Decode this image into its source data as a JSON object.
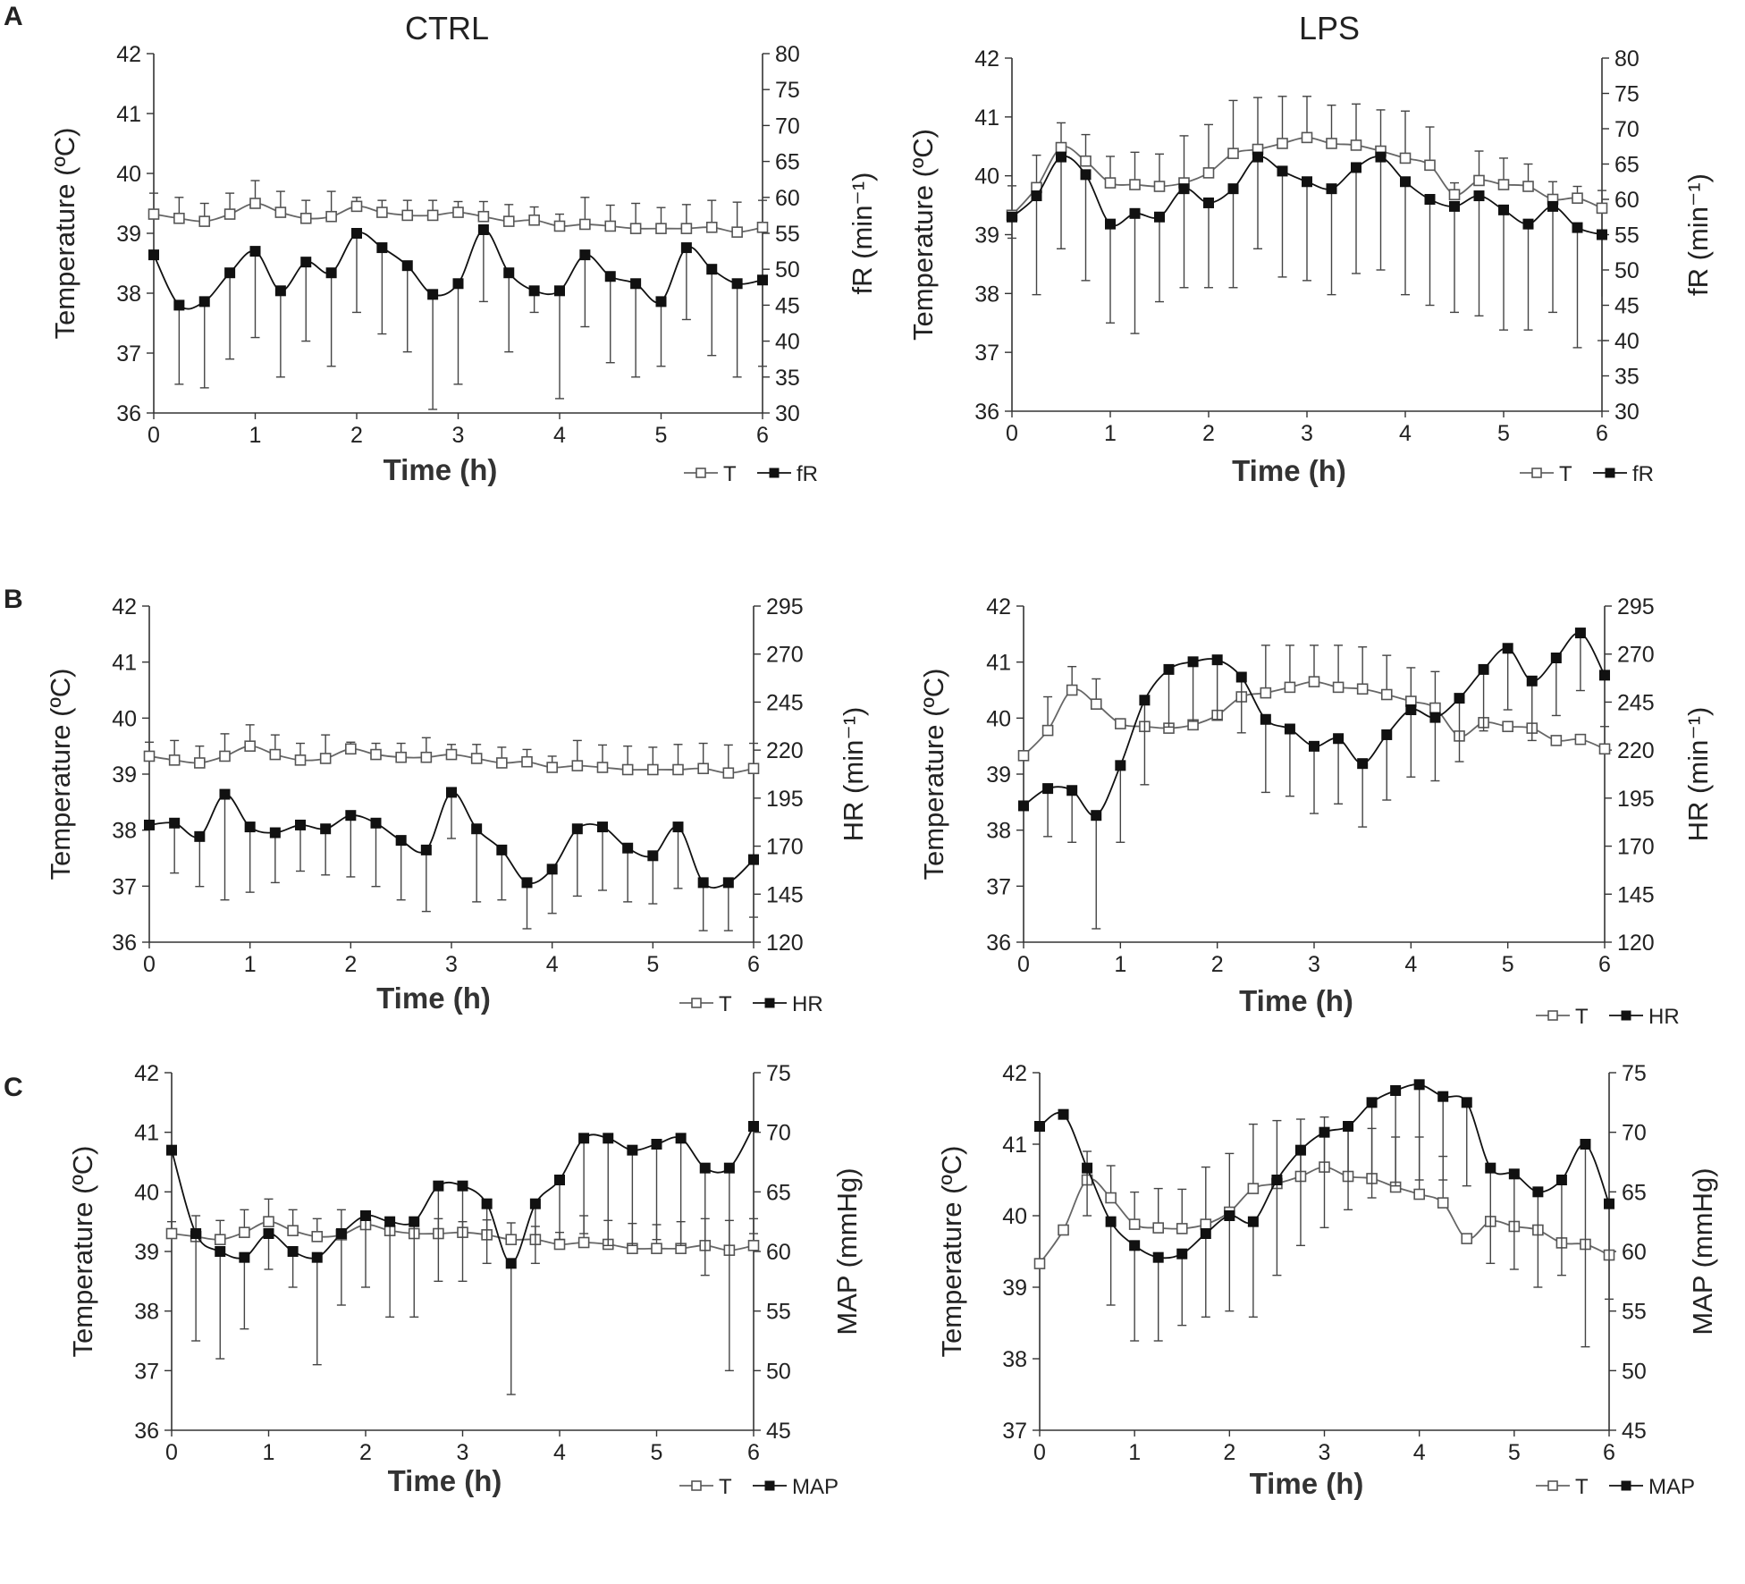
{
  "column_titles": [
    "CTRL",
    "LPS"
  ],
  "panel_letters": [
    "A",
    "B",
    "C"
  ],
  "chart_data": [
    {
      "id": "A-CTRL",
      "type": "line",
      "panel": "A",
      "group": "CTRL",
      "title": "CTRL",
      "xlabel": "Time (h)",
      "ylabel_left": "Temperature (ºC)",
      "ylabel_right": "fR (min⁻¹)",
      "xlim": [
        0,
        6
      ],
      "ylim_left": [
        36,
        42
      ],
      "ylim_right": [
        30,
        80
      ],
      "xticks": [
        0,
        1,
        2,
        3,
        4,
        5,
        6
      ],
      "yticks_left": [
        36,
        37,
        38,
        39,
        40,
        41,
        42
      ],
      "yticks_right": [
        30,
        35,
        40,
        45,
        50,
        55,
        60,
        65,
        70,
        75,
        80
      ],
      "legend": [
        "T",
        "fR"
      ],
      "x": [
        0,
        0.25,
        0.5,
        0.75,
        1,
        1.25,
        1.5,
        1.75,
        2,
        2.25,
        2.5,
        2.75,
        3,
        3.25,
        3.5,
        3.75,
        4,
        4.25,
        4.5,
        4.75,
        5,
        5.25,
        5.5,
        5.75,
        6
      ],
      "series": [
        {
          "name": "T",
          "axis": "left",
          "values": [
            39.32,
            39.25,
            39.2,
            39.32,
            39.5,
            39.35,
            39.25,
            39.28,
            39.45,
            39.35,
            39.3,
            39.3,
            39.35,
            39.28,
            39.2,
            39.22,
            39.12,
            39.15,
            39.12,
            39.08,
            39.08,
            39.08,
            39.1,
            39.02,
            39.1
          ],
          "err": [
            0.35,
            0.35,
            0.3,
            0.35,
            0.38,
            0.35,
            0.3,
            0.42,
            0.15,
            0.2,
            0.25,
            0.25,
            0.18,
            0.25,
            0.28,
            0.22,
            0.2,
            0.45,
            0.35,
            0.42,
            0.35,
            0.4,
            0.45,
            0.5,
            0.45
          ]
        },
        {
          "name": "fR",
          "axis": "right",
          "values": [
            52,
            45,
            45.5,
            49.5,
            52.5,
            47,
            51,
            49.5,
            55,
            53,
            50.5,
            46.5,
            48,
            55.5,
            49.5,
            47,
            47,
            52,
            49,
            48,
            45.5,
            53,
            50,
            48,
            48.5
          ],
          "err": [
            0,
            11,
            12,
            12,
            12,
            12,
            11,
            13,
            11,
            12,
            12,
            16,
            14,
            10,
            11,
            3,
            15,
            10,
            12,
            13,
            9,
            10,
            12,
            13,
            12
          ]
        }
      ]
    },
    {
      "id": "A-LPS",
      "type": "line",
      "panel": "A",
      "group": "LPS",
      "title": "LPS",
      "xlabel": "Time (h)",
      "ylabel_left": "Temperature (ºC)",
      "ylabel_right": "fR (min⁻¹)",
      "xlim": [
        0,
        6
      ],
      "ylim_left": [
        36,
        42
      ],
      "ylim_right": [
        30,
        80
      ],
      "xticks": [
        0,
        1,
        2,
        3,
        4,
        5,
        6
      ],
      "yticks_left": [
        36,
        37,
        38,
        39,
        40,
        41,
        42
      ],
      "yticks_right": [
        30,
        35,
        40,
        45,
        50,
        55,
        60,
        65,
        70,
        75,
        80
      ],
      "legend": [
        "T",
        "fR"
      ],
      "x": [
        0,
        0.25,
        0.5,
        0.75,
        1,
        1.25,
        1.5,
        1.75,
        2,
        2.25,
        2.5,
        2.75,
        3,
        3.25,
        3.5,
        3.75,
        4,
        4.25,
        4.5,
        4.75,
        5,
        5.25,
        5.5,
        5.75,
        6
      ],
      "series": [
        {
          "name": "T",
          "axis": "left",
          "values": [
            39.33,
            39.8,
            40.48,
            40.25,
            39.88,
            39.85,
            39.82,
            39.88,
            40.05,
            40.38,
            40.45,
            40.55,
            40.65,
            40.55,
            40.52,
            40.42,
            40.3,
            40.18,
            39.68,
            39.92,
            39.85,
            39.82,
            39.6,
            39.62,
            39.45
          ],
          "err": [
            0.5,
            0.55,
            0.42,
            0.45,
            0.45,
            0.55,
            0.55,
            0.8,
            0.82,
            0.9,
            0.88,
            0.8,
            0.7,
            0.65,
            0.7,
            0.7,
            0.8,
            0.65,
            0.2,
            0.5,
            0.45,
            0.38,
            0.3,
            0.2,
            0.3
          ],
          "err_down": [
            0,
            0,
            0,
            0,
            0,
            0,
            0,
            0,
            0,
            0,
            0,
            0,
            0,
            0,
            0,
            0,
            0,
            0,
            0,
            0,
            0,
            0,
            0,
            0,
            1.5
          ]
        },
        {
          "name": "fR",
          "axis": "right",
          "values": [
            57.5,
            60.5,
            66,
            63.5,
            56.5,
            58,
            57.5,
            61.5,
            59.5,
            61.5,
            66,
            64,
            62.5,
            61.5,
            64.5,
            66,
            62.5,
            60,
            59,
            60.5,
            58.5,
            56.5,
            59,
            56,
            55
          ],
          "err": [
            3,
            14,
            13,
            15,
            14,
            17,
            12,
            14,
            12,
            14,
            13,
            15,
            14,
            15,
            15,
            16,
            16,
            15,
            15,
            17,
            17,
            15,
            15,
            17,
            15
          ]
        }
      ]
    },
    {
      "id": "B-CTRL",
      "type": "line",
      "panel": "B",
      "group": "CTRL",
      "title": "",
      "xlabel": "Time (h)",
      "ylabel_left": "Temperature (ºC)",
      "ylabel_right": "HR (min⁻¹)",
      "xlim": [
        0,
        6
      ],
      "ylim_left": [
        36,
        42
      ],
      "ylim_right": [
        120,
        295
      ],
      "xticks": [
        0,
        1,
        2,
        3,
        4,
        5,
        6
      ],
      "yticks_left": [
        36,
        37,
        38,
        39,
        40,
        41,
        42
      ],
      "yticks_right": [
        120,
        145,
        170,
        195,
        220,
        245,
        270,
        295
      ],
      "legend": [
        "T",
        "HR"
      ],
      "x": [
        0,
        0.25,
        0.5,
        0.75,
        1,
        1.25,
        1.5,
        1.75,
        2,
        2.25,
        2.5,
        2.75,
        3,
        3.25,
        3.5,
        3.75,
        4,
        4.25,
        4.5,
        4.75,
        5,
        5.25,
        5.5,
        5.75,
        6
      ],
      "series": [
        {
          "name": "T",
          "axis": "left",
          "values": [
            39.32,
            39.25,
            39.2,
            39.32,
            39.5,
            39.35,
            39.25,
            39.28,
            39.45,
            39.35,
            39.3,
            39.3,
            39.35,
            39.28,
            39.2,
            39.22,
            39.12,
            39.15,
            39.12,
            39.08,
            39.08,
            39.08,
            39.1,
            39.02,
            39.1
          ],
          "err": [
            0.25,
            0.35,
            0.3,
            0.4,
            0.38,
            0.35,
            0.3,
            0.42,
            0.12,
            0.2,
            0.25,
            0.35,
            0.18,
            0.25,
            0.28,
            0.22,
            0.2,
            0.45,
            0.4,
            0.42,
            0.4,
            0.45,
            0.45,
            0.5,
            0.45
          ]
        },
        {
          "name": "HR",
          "axis": "right",
          "values": [
            181,
            182,
            175,
            197,
            180,
            177,
            181,
            179,
            186,
            182,
            173,
            168,
            198,
            179,
            168,
            151,
            158,
            179,
            180,
            169,
            165,
            180,
            151,
            151,
            163
          ],
          "err": [
            0,
            26,
            26,
            55,
            34,
            26,
            24,
            24,
            32,
            33,
            31,
            32,
            24,
            38,
            26,
            24,
            23,
            35,
            33,
            28,
            25,
            32,
            25,
            25,
            30
          ]
        }
      ]
    },
    {
      "id": "B-LPS",
      "type": "line",
      "panel": "B",
      "group": "LPS",
      "title": "",
      "xlabel": "Time (h)",
      "ylabel_left": "Temperature (ºC)",
      "ylabel_right": "HR (min⁻¹)",
      "xlim": [
        0,
        6
      ],
      "ylim_left": [
        36,
        42
      ],
      "ylim_right": [
        120,
        295
      ],
      "xticks": [
        0,
        1,
        2,
        3,
        4,
        5,
        6
      ],
      "yticks_left": [
        36,
        37,
        38,
        39,
        40,
        41,
        42
      ],
      "yticks_right": [
        120,
        145,
        170,
        195,
        220,
        245,
        270,
        295
      ],
      "legend": [
        "T",
        "HR"
      ],
      "x": [
        0,
        0.25,
        0.5,
        0.75,
        1,
        1.25,
        1.5,
        1.75,
        2,
        2.25,
        2.5,
        2.75,
        3,
        3.25,
        3.5,
        3.75,
        4,
        4.25,
        4.5,
        4.75,
        5,
        5.25,
        5.5,
        5.75,
        6
      ],
      "series": [
        {
          "name": "T",
          "axis": "left",
          "values": [
            39.33,
            39.78,
            40.5,
            40.25,
            39.9,
            39.85,
            39.82,
            39.88,
            40.05,
            40.38,
            40.45,
            40.55,
            40.65,
            40.55,
            40.52,
            40.42,
            40.3,
            40.18,
            39.68,
            39.92,
            39.85,
            39.82,
            39.6,
            39.62,
            39.45
          ],
          "err": [
            0,
            0.6,
            0.42,
            0.45,
            0,
            0,
            0,
            0,
            0,
            0,
            0.85,
            0.75,
            0.65,
            0.75,
            0.75,
            0.7,
            0.6,
            0.65,
            0,
            0,
            0,
            0,
            0,
            0,
            0.4
          ]
        },
        {
          "name": "HR",
          "axis": "right",
          "values": [
            191,
            200,
            199,
            186,
            212,
            246,
            262,
            266,
            267,
            258,
            236,
            231,
            222,
            226,
            213,
            228,
            241,
            237,
            247,
            262,
            273,
            256,
            268,
            281,
            259
          ],
          "err": [
            0,
            25,
            27,
            59,
            40,
            44,
            30,
            31,
            31,
            29,
            38,
            35,
            35,
            34,
            33,
            34,
            35,
            33,
            33,
            32,
            32,
            31,
            30,
            30,
            0
          ]
        }
      ]
    },
    {
      "id": "C-CTRL",
      "type": "line",
      "panel": "C",
      "group": "CTRL",
      "title": "",
      "xlabel": "Time (h)",
      "ylabel_left": "Temperature (ºC)",
      "ylabel_right": "MAP (mmHg)",
      "xlim": [
        0,
        6
      ],
      "ylim_left": [
        36,
        42
      ],
      "ylim_right": [
        45,
        75
      ],
      "xticks": [
        0,
        1,
        2,
        3,
        4,
        5,
        6
      ],
      "yticks_left": [
        36,
        37,
        38,
        39,
        40,
        41,
        42
      ],
      "yticks_right": [
        45,
        50,
        55,
        60,
        65,
        70,
        75
      ],
      "legend": [
        "T",
        "MAP"
      ],
      "x": [
        0,
        0.25,
        0.5,
        0.75,
        1,
        1.25,
        1.5,
        1.75,
        2,
        2.25,
        2.5,
        2.75,
        3,
        3.25,
        3.5,
        3.75,
        4,
        4.25,
        4.5,
        4.75,
        5,
        5.25,
        5.5,
        5.75,
        6
      ],
      "series": [
        {
          "name": "T",
          "axis": "left",
          "values": [
            39.3,
            39.25,
            39.2,
            39.32,
            39.5,
            39.35,
            39.25,
            39.28,
            39.45,
            39.35,
            39.3,
            39.3,
            39.32,
            39.28,
            39.2,
            39.2,
            39.12,
            39.15,
            39.12,
            39.05,
            39.05,
            39.05,
            39.1,
            39.02,
            39.1
          ],
          "err": [
            0.2,
            0.35,
            0.32,
            0.38,
            0.38,
            0.35,
            0.3,
            0.42,
            0.15,
            0.2,
            0.25,
            0.25,
            0.18,
            0.25,
            0.28,
            0.22,
            0.2,
            0.45,
            0.4,
            0.42,
            0.4,
            0.45,
            0.45,
            0.5,
            0.45
          ]
        },
        {
          "name": "MAP",
          "axis": "right",
          "values": [
            68.5,
            61.5,
            60,
            59.5,
            61.5,
            60,
            59.5,
            61.5,
            63,
            62.5,
            62.5,
            65.5,
            65.5,
            64,
            59,
            64,
            66,
            69.5,
            69.5,
            68.5,
            69,
            69.5,
            67,
            67,
            70.5
          ],
          "err": [
            0,
            9,
            9,
            6,
            3,
            3,
            9,
            6,
            6,
            8,
            8,
            8,
            8,
            5,
            11,
            5,
            5,
            8,
            9,
            8,
            8,
            9,
            9,
            17,
            9
          ]
        }
      ]
    },
    {
      "id": "C-LPS",
      "type": "line",
      "panel": "C",
      "group": "LPS",
      "title": "",
      "xlabel": "Time (h)",
      "ylabel_left": "Temperature (ºC)",
      "ylabel_right": "MAP (mmHg)",
      "xlim": [
        0,
        6
      ],
      "ylim_left": [
        37,
        42
      ],
      "ylim_right": [
        45,
        75
      ],
      "xticks": [
        0,
        1,
        2,
        3,
        4,
        5,
        6
      ],
      "yticks_left": [
        37,
        38,
        39,
        40,
        41,
        42
      ],
      "yticks_right": [
        45,
        50,
        55,
        60,
        65,
        70,
        75
      ],
      "legend": [
        "T",
        "MAP"
      ],
      "x": [
        0,
        0.25,
        0.5,
        0.75,
        1,
        1.25,
        1.5,
        1.75,
        2,
        2.25,
        2.5,
        2.75,
        3,
        3.25,
        3.5,
        3.75,
        4,
        4.25,
        4.5,
        4.75,
        5,
        5.25,
        5.5,
        5.75,
        6
      ],
      "series": [
        {
          "name": "T",
          "axis": "left",
          "values": [
            39.33,
            39.8,
            40.5,
            40.25,
            39.88,
            39.83,
            39.82,
            39.88,
            40.05,
            40.38,
            40.45,
            40.55,
            40.68,
            40.55,
            40.52,
            40.4,
            40.3,
            40.18,
            39.68,
            39.92,
            39.85,
            39.8,
            39.62,
            39.6,
            39.45
          ],
          "err": [
            0,
            0,
            0.4,
            0.45,
            0.45,
            0.55,
            0.55,
            0.8,
            0.82,
            0.9,
            0.88,
            0.8,
            0.7,
            0.65,
            0.7,
            0.7,
            0.8,
            0.65,
            0,
            0,
            0,
            0,
            0,
            0,
            0
          ]
        },
        {
          "name": "MAP",
          "axis": "right",
          "values": [
            70.5,
            71.5,
            67,
            62.5,
            60.5,
            59.5,
            59.8,
            61.5,
            63,
            62.5,
            66,
            68.5,
            70,
            70.5,
            72.5,
            73.5,
            74,
            73,
            72.5,
            67,
            66.5,
            65,
            66,
            69,
            64
          ],
          "err": [
            0,
            0,
            4,
            7,
            8,
            7,
            6,
            7,
            8,
            8,
            8,
            8,
            8,
            7,
            8,
            8,
            8,
            7,
            7,
            8,
            8,
            8,
            8,
            17,
            8
          ]
        }
      ]
    }
  ]
}
